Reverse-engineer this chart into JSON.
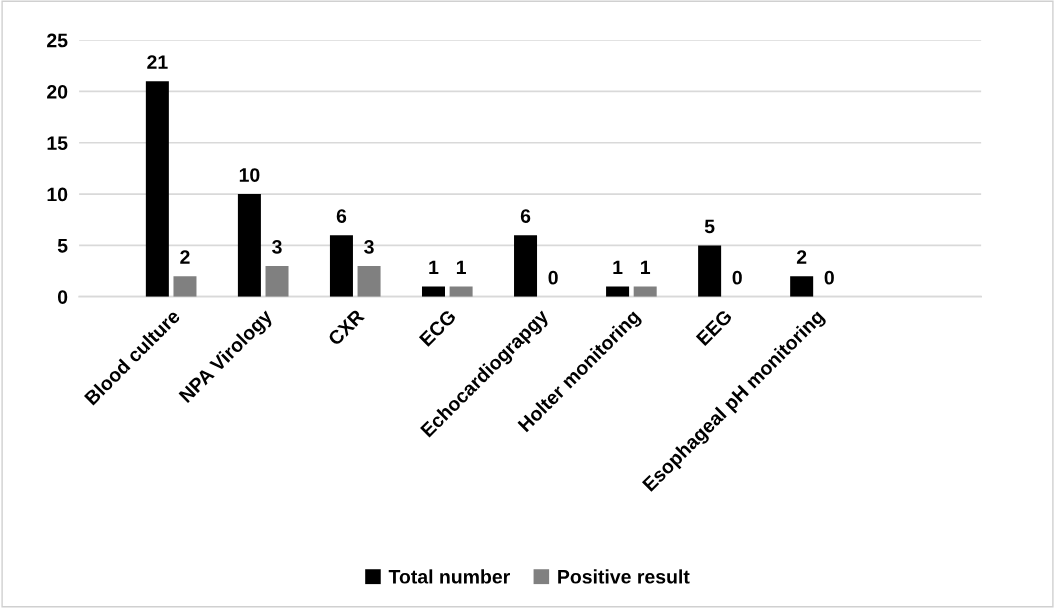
{
  "chart_data": {
    "type": "bar",
    "categories": [
      "Blood culture",
      "NPA Virology",
      "CXR",
      "ECG",
      "Echocardiograpgy",
      "Holter monitoring",
      "EEG",
      "Esophageal pH monitoring"
    ],
    "series": [
      {
        "name": "Total number",
        "color": "#000000",
        "values": [
          21,
          10,
          6,
          1,
          6,
          1,
          5,
          2
        ]
      },
      {
        "name": "Positive result",
        "color": "#808080",
        "values": [
          2,
          3,
          3,
          1,
          0,
          1,
          0,
          0
        ]
      }
    ],
    "ylim": [
      0,
      25
    ],
    "yticks": [
      0,
      5,
      10,
      15,
      20,
      25
    ],
    "grid": "y",
    "legend": "bottom",
    "data_labels": true
  }
}
